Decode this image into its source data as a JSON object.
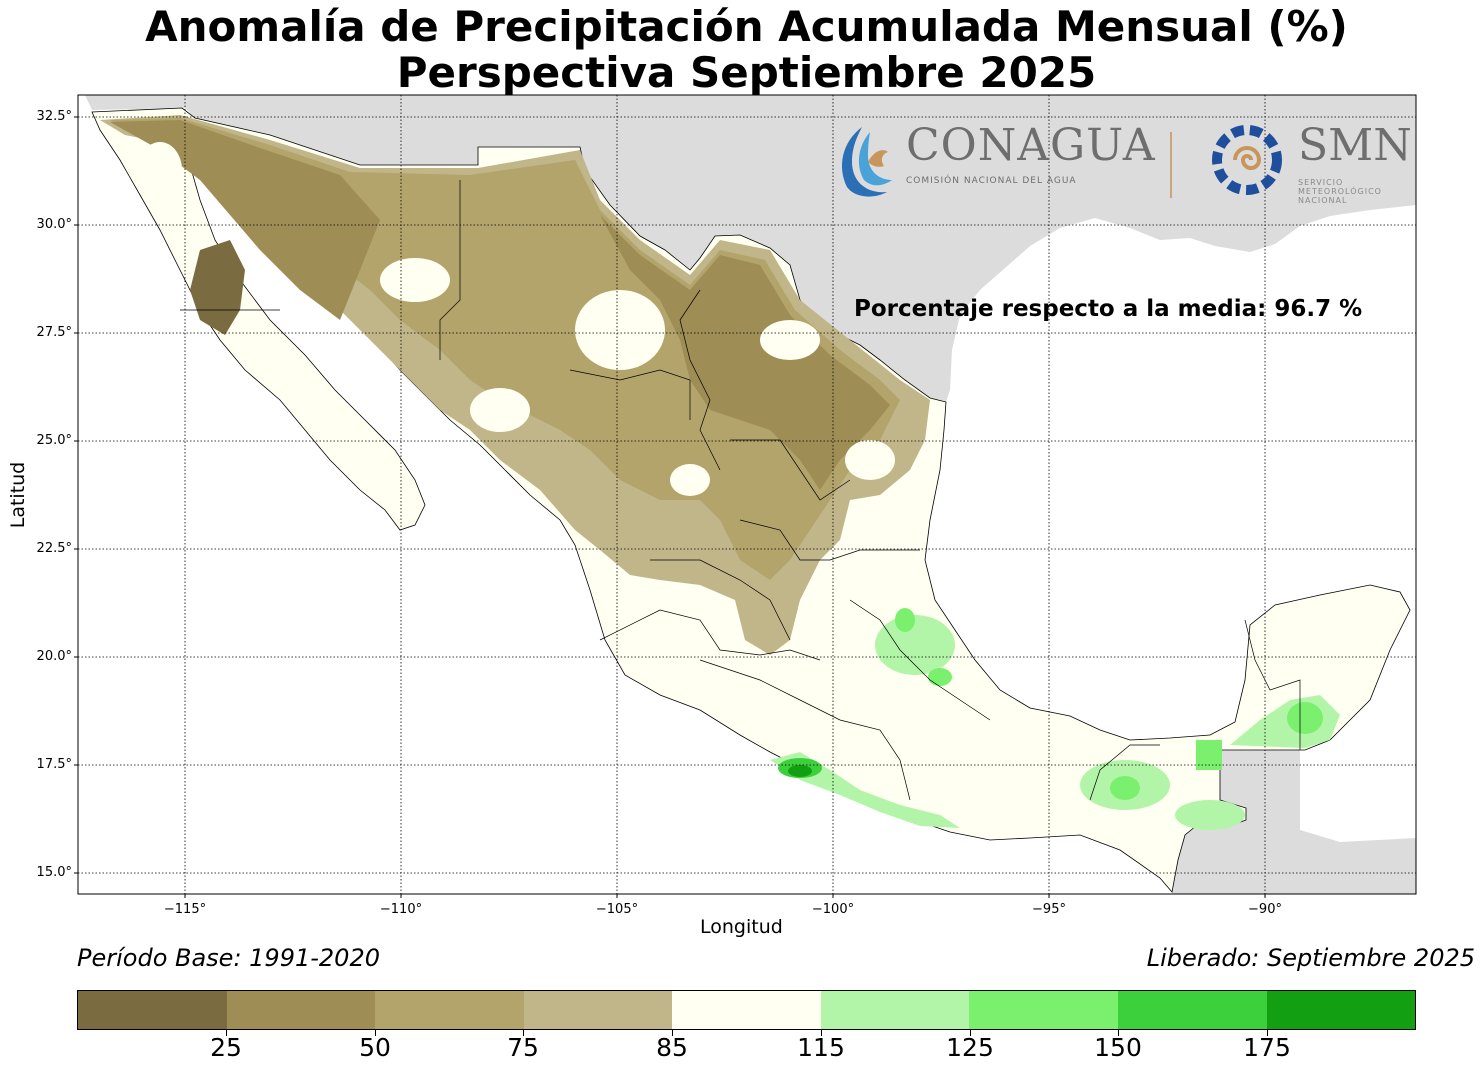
{
  "title_line1": "Anomalía de Precipitación Acumulada Mensual (%)",
  "title_line2": "Perspectiva Septiembre 2025",
  "axes": {
    "xlabel": "Longitud",
    "ylabel": "Latitud",
    "x_ticks": [
      "−115°",
      "−110°",
      "−105°",
      "−100°",
      "−95°",
      "−90°"
    ],
    "y_ticks": [
      "32.5°",
      "30.0°",
      "27.5°",
      "25.0°",
      "22.5°",
      "20.0°",
      "17.5°",
      "15.0°"
    ],
    "lon_range": [
      -117.5,
      -86.5
    ],
    "lat_range": [
      14.5,
      32.9
    ],
    "grid": "dotted"
  },
  "percent_note": "Porcentaje respecto a la media: 96.7 %",
  "base_period": "Período Base: 1991-2020",
  "released": "Liberado: Septiembre 2025",
  "logos": {
    "conagua_name": "CONAGUA",
    "conagua_sub": "COMISIÓN NACIONAL DEL AGUA",
    "smn_name": "SMN",
    "smn_sub": "SERVICIO METEOROLÓGICO NACIONAL"
  },
  "colorbar": {
    "labels": [
      "25",
      "50",
      "75",
      "85",
      "115",
      "125",
      "150",
      "175"
    ],
    "colors": [
      "#7a6b40",
      "#9e8d55",
      "#b3a46c",
      "#c1b68a",
      "#fffff2",
      "#b3f5a8",
      "#7af06e",
      "#3cd13c",
      "#12a012"
    ]
  },
  "map_colors": {
    "ocean": "#ffffff",
    "foreign_land": "#dcdcdc",
    "border": "#000000"
  }
}
